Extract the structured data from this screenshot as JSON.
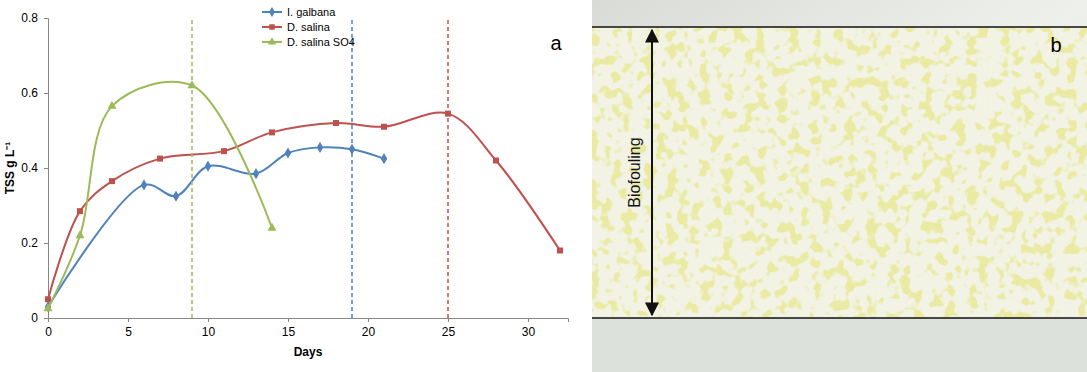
{
  "chart_data": {
    "type": "line",
    "x_label": "Days",
    "y_label": "TSS g L⁻¹",
    "annotations": [
      "a"
    ],
    "xlim": [
      0,
      32.5
    ],
    "xticks": [
      0,
      5,
      10,
      15,
      20,
      25,
      30
    ],
    "ylim": [
      0,
      0.8
    ],
    "yticks": [
      0,
      0.2,
      0.4,
      0.6,
      0.8
    ],
    "grid": false,
    "legend": "top",
    "series": [
      {
        "name": "I. galbana",
        "color": "#4f81bd",
        "marker": "diamond",
        "line_style": "solid",
        "x": [
          0,
          6,
          8,
          10,
          13,
          15,
          17,
          19,
          21
        ],
        "values": [
          0.03,
          0.355,
          0.325,
          0.405,
          0.385,
          0.44,
          0.455,
          0.45,
          0.425
        ],
        "harvest_day": 19
      },
      {
        "name": "D. salina",
        "color": "#c0504d",
        "marker": "square",
        "line_style": "solid",
        "x": [
          0,
          2,
          4,
          7,
          11,
          14,
          18,
          21,
          25,
          28,
          32
        ],
        "values": [
          0.05,
          0.285,
          0.365,
          0.425,
          0.445,
          0.495,
          0.52,
          0.51,
          0.545,
          0.42,
          0.18
        ],
        "harvest_day": 25
      },
      {
        "name": "D. salina SO4",
        "color": "#9bbb59",
        "marker": "triangle",
        "line_style": "solid",
        "x": [
          0,
          2,
          4,
          9,
          14
        ],
        "values": [
          0.025,
          0.22,
          0.565,
          0.62,
          0.24
        ],
        "harvest_day": 9
      }
    ]
  },
  "photo": {
    "panel": "b",
    "label": "Biofouling"
  }
}
